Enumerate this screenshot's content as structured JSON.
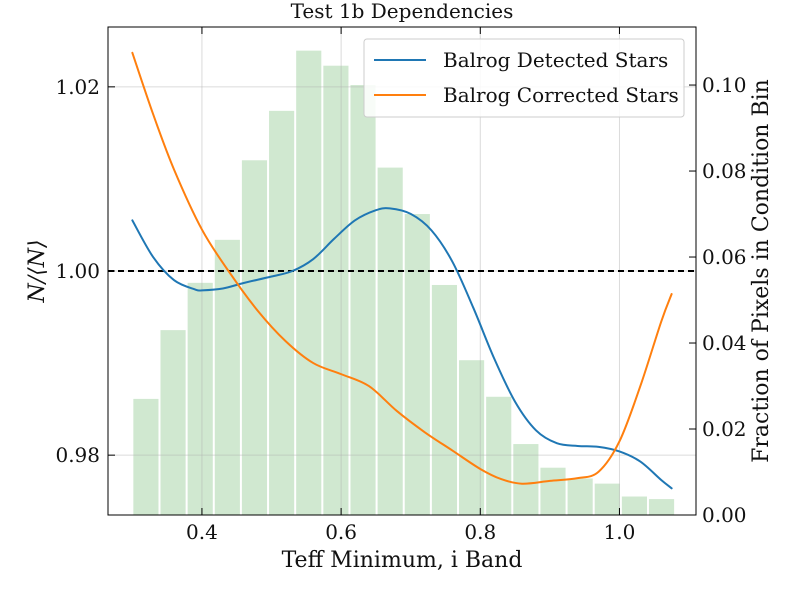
{
  "chart_data": {
    "type": "line",
    "title": "Test 1b Dependencies",
    "xlabel": "Teff Minimum, i Band",
    "ylabel": "N/⟨N⟩",
    "y2label": "Fraction of Pixels in Condition Bin",
    "xlim": [
      0.265,
      1.11
    ],
    "ylim": [
      0.9735,
      1.0265
    ],
    "y2lim": [
      0.0,
      0.1135
    ],
    "x_ticks": [
      0.4,
      0.6,
      0.8,
      1.0
    ],
    "x_tick_labels": [
      "0.4",
      "0.6",
      "0.8",
      "1.0"
    ],
    "y_ticks": [
      0.98,
      1.0,
      1.02
    ],
    "y_tick_labels": [
      "0.98",
      "1.00",
      "1.02"
    ],
    "y2_ticks": [
      0.0,
      0.02,
      0.04,
      0.06,
      0.08,
      0.1
    ],
    "y2_tick_labels": [
      "0.00",
      "0.02",
      "0.04",
      "0.06",
      "0.08",
      "0.10"
    ],
    "grid": true,
    "legend_position": "top-right",
    "reference_line": {
      "y": 1.0,
      "style": "dashed",
      "color": "#000000"
    },
    "series": [
      {
        "name": "Balrog Detected Stars",
        "color": "#1f77b4",
        "x": [
          0.3,
          0.33,
          0.36,
          0.39,
          0.4,
          0.43,
          0.46,
          0.5,
          0.53,
          0.56,
          0.59,
          0.62,
          0.65,
          0.67,
          0.7,
          0.73,
          0.76,
          0.79,
          0.82,
          0.85,
          0.88,
          0.91,
          0.94,
          0.97,
          1.0,
          1.03,
          1.06,
          1.075
        ],
        "y": [
          1.0055,
          1.0015,
          0.999,
          0.998,
          0.9979,
          0.9981,
          0.9987,
          0.9994,
          1.0,
          1.0013,
          1.0035,
          1.0055,
          1.0066,
          1.0068,
          1.0062,
          1.0044,
          1.001,
          0.996,
          0.9905,
          0.9858,
          0.9827,
          0.9813,
          0.981,
          0.9809,
          0.9804,
          0.9793,
          0.9773,
          0.9764
        ]
      },
      {
        "name": "Balrog Corrected Stars",
        "color": "#ff7f0e",
        "x": [
          0.3,
          0.33,
          0.36,
          0.4,
          0.44,
          0.48,
          0.52,
          0.56,
          0.6,
          0.64,
          0.68,
          0.72,
          0.76,
          0.8,
          0.83,
          0.86,
          0.9,
          0.94,
          0.97,
          1.0,
          1.03,
          1.06,
          1.075
        ],
        "y": [
          1.0237,
          1.017,
          1.011,
          1.0045,
          0.9998,
          0.9957,
          0.9924,
          0.99,
          0.9888,
          0.9875,
          0.9848,
          0.9825,
          0.9805,
          0.9785,
          0.9774,
          0.9769,
          0.9772,
          0.9775,
          0.9782,
          0.9815,
          0.9875,
          0.9945,
          0.9975
        ]
      }
    ],
    "histogram": {
      "name": "",
      "color": "#a9d6a9",
      "bin_edges": [
        0.3,
        0.339,
        0.378,
        0.417,
        0.456,
        0.495,
        0.534,
        0.573,
        0.612,
        0.651,
        0.69,
        0.729,
        0.768,
        0.807,
        0.846,
        0.885,
        0.924,
        0.963,
        1.002,
        1.041,
        1.08
      ],
      "fractions": [
        0.027,
        0.043,
        0.054,
        0.064,
        0.0825,
        0.094,
        0.108,
        0.1045,
        0.1,
        0.0808,
        0.07,
        0.0535,
        0.036,
        0.0275,
        0.0165,
        0.011,
        0.0085,
        0.0073,
        0.0043,
        0.0037
      ]
    }
  }
}
